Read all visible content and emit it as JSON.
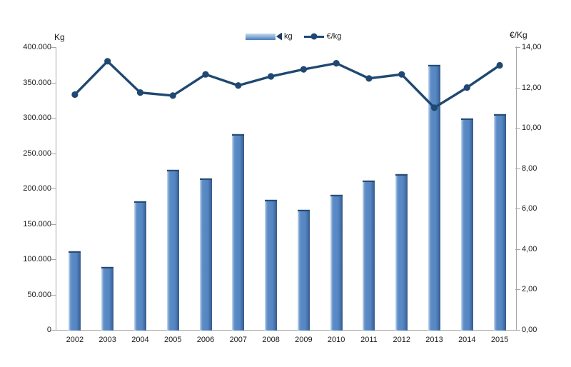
{
  "chart_data": {
    "type": "bar",
    "title": "",
    "categories": [
      "2002",
      "2003",
      "2004",
      "2005",
      "2006",
      "2007",
      "2008",
      "2009",
      "2010",
      "2011",
      "2012",
      "2013",
      "2014",
      "2015"
    ],
    "series": [
      {
        "name": "kg",
        "type": "bar",
        "axis": "left",
        "color": "#5b8bc5",
        "values": [
          112000,
          90000,
          183000,
          227000,
          215000,
          278000,
          185000,
          171000,
          192000,
          212000,
          221000,
          376000,
          300000,
          306000
        ]
      },
      {
        "name": "€/kg",
        "type": "line",
        "axis": "right",
        "color": "#1f4872",
        "values": [
          11.65,
          13.3,
          11.75,
          11.6,
          12.65,
          12.1,
          12.55,
          12.9,
          13.2,
          12.45,
          12.65,
          11.0,
          12.0,
          13.1
        ]
      }
    ],
    "left_axis": {
      "title": "Kg",
      "min": 0,
      "max": 400000,
      "tick_values": [
        400000,
        350000,
        300000,
        250000,
        200000,
        150000,
        100000,
        50000,
        0
      ],
      "tick_labels": [
        "400.000",
        "350.000",
        "300.000",
        "250.000",
        "200.000",
        "150.000",
        "100.000",
        "50.000",
        "0"
      ]
    },
    "right_axis": {
      "title": "€/Kg",
      "min": 0,
      "max": 14,
      "tick_values": [
        14,
        12,
        10,
        8,
        6,
        4,
        2,
        0
      ],
      "tick_labels": [
        "14,00",
        "12,00",
        "10,00",
        "8,00",
        "6,00",
        "4,00",
        "2,00",
        "0,00"
      ]
    },
    "legend": {
      "position": "top-center"
    },
    "grid": false
  }
}
